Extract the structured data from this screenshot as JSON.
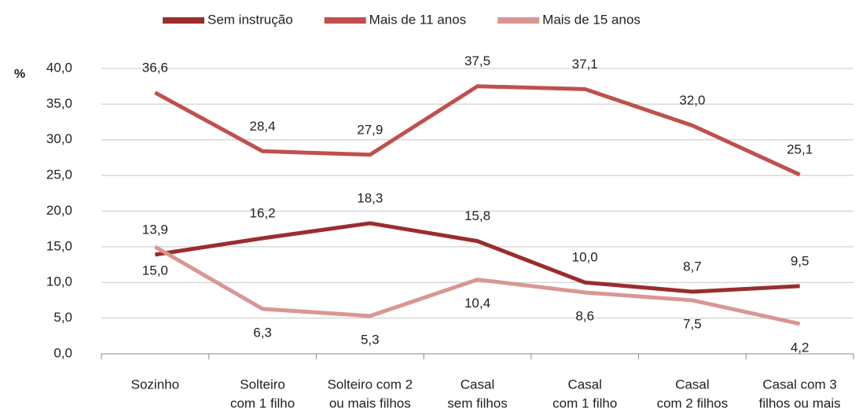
{
  "chart_data": {
    "type": "line",
    "y_label": "%",
    "categories": [
      [
        "Sozinho"
      ],
      [
        "Solteiro",
        "com 1 filho"
      ],
      [
        "Solteiro com 2",
        "ou mais filhos"
      ],
      [
        "Casal",
        "sem filhos"
      ],
      [
        "Casal",
        "com 1 filho"
      ],
      [
        "Casal",
        "com 2 filhos"
      ],
      [
        "Casal com 3",
        "filhos ou mais"
      ]
    ],
    "series": [
      {
        "name": "Sem instrução",
        "color": "#9b2d2d",
        "values": [
          13.9,
          16.2,
          18.3,
          15.8,
          10.0,
          8.7,
          9.5
        ],
        "value_labels": [
          "13,9",
          "16,2",
          "18,3",
          "15,8",
          "10,0",
          "8,7",
          "9,5"
        ]
      },
      {
        "name": "Mais de 11 anos",
        "color": "#c0504d",
        "values": [
          36.6,
          28.4,
          27.9,
          37.5,
          37.1,
          32.0,
          25.1
        ],
        "value_labels": [
          "36,6",
          "28,4",
          "27,9",
          "37,5",
          "37,1",
          "32,0",
          "25,1"
        ]
      },
      {
        "name": "Mais de 15 anos",
        "color": "#d99694",
        "values": [
          15.0,
          6.3,
          5.3,
          10.4,
          8.6,
          7.5,
          4.2
        ],
        "value_labels": [
          "15,0",
          "6,3",
          "5,3",
          "10,4",
          "8,6",
          "7,5",
          "4,2"
        ]
      }
    ],
    "ylim": [
      0,
      40
    ],
    "yticks": [
      {
        "value": 0,
        "label": "0,0"
      },
      {
        "value": 5,
        "label": "5,0"
      },
      {
        "value": 10,
        "label": "10,0"
      },
      {
        "value": 15,
        "label": "15,0"
      },
      {
        "value": 20,
        "label": "20,0"
      },
      {
        "value": 25,
        "label": "25,0"
      },
      {
        "value": 30,
        "label": "30,0"
      },
      {
        "value": 35,
        "label": "35,0"
      },
      {
        "value": 40,
        "label": "40,0"
      }
    ],
    "grid": true,
    "legend": "top"
  }
}
